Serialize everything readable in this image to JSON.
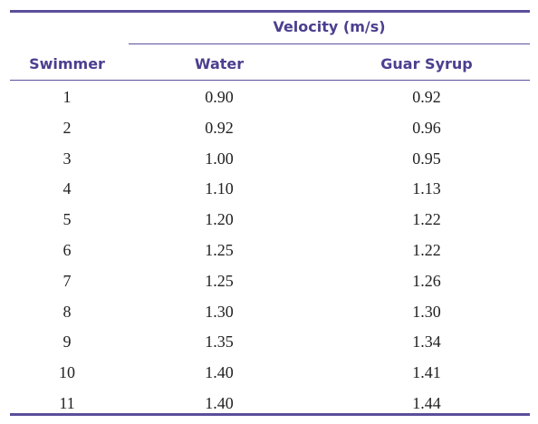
{
  "table": {
    "group_header": "Velocity (m/s)",
    "columns": [
      "Swimmer",
      "Water",
      "Guar Syrup"
    ],
    "rows": [
      [
        "1",
        "0.90",
        "0.92"
      ],
      [
        "2",
        "0.92",
        "0.96"
      ],
      [
        "3",
        "1.00",
        "0.95"
      ],
      [
        "4",
        "1.10",
        "1.13"
      ],
      [
        "5",
        "1.20",
        "1.22"
      ],
      [
        "6",
        "1.25",
        "1.22"
      ],
      [
        "7",
        "1.25",
        "1.26"
      ],
      [
        "8",
        "1.30",
        "1.30"
      ],
      [
        "9",
        "1.35",
        "1.34"
      ],
      [
        "10",
        "1.40",
        "1.41"
      ],
      [
        "11",
        "1.40",
        "1.44"
      ]
    ],
    "accent_color": "#5a4f9b",
    "header_text_color": "#4b3f8f"
  }
}
